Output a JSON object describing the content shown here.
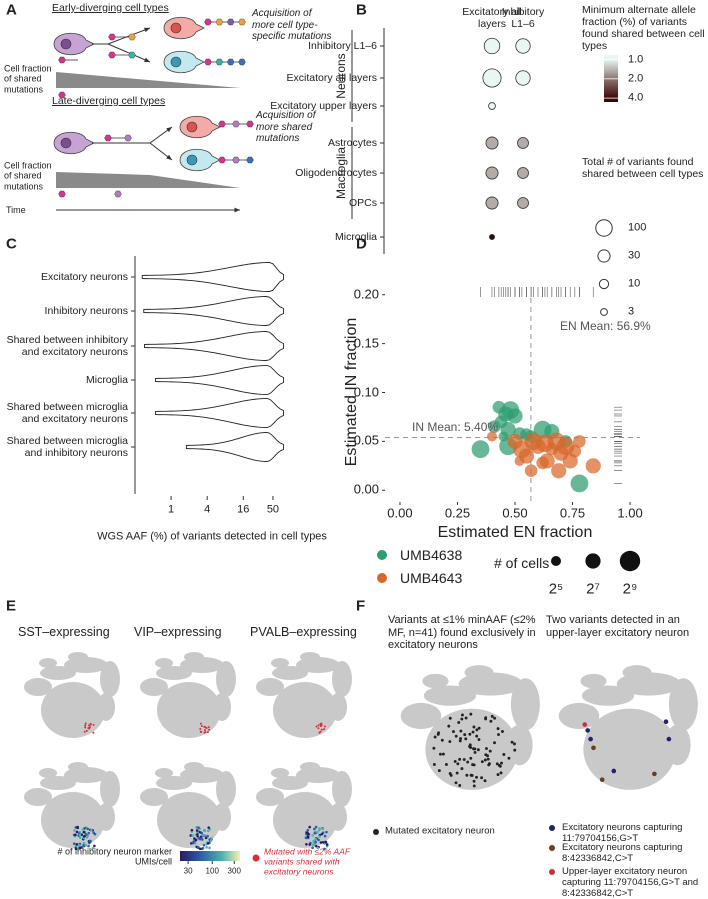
{
  "panels": {
    "a": {
      "label": "A",
      "early_title": "Early-diverging cell types",
      "early_note": "Acquisition of more cell type-specific mutations",
      "early_shared_label": "Cell fraction of shared mutations",
      "late_title": "Late-diverging cell types",
      "late_note": "Acquisition of more shared mutations",
      "late_shared_label": "Cell fraction of shared mutations",
      "time_label": "Time"
    },
    "b": {
      "label": "B"
    },
    "c": {
      "label": "C"
    },
    "d": {
      "label": "D"
    },
    "e": {
      "label": "E",
      "titles": [
        "SST–expressing",
        "VIP–expressing",
        "PVALB–expressing"
      ],
      "colorbar_title": "# of inhibitory neuron marker UMIs/cell",
      "colorbar_lim": [
        20,
        400
      ],
      "colorbar_ticks": [
        30,
        100,
        300
      ],
      "mutated_legend": "Mutated with ≤2% AAF variants shared with excitatory neurons",
      "mutated_color": "#d7303a"
    },
    "f": {
      "label": "F",
      "left_title": "Variants at ≤1% minAAF (≤2% MF, n=41) found exclusively in excitatory neurons",
      "right_title": "Two variants detected in an upper-layer excitatory neuron",
      "left_legend": "Mutated excitatory neuron",
      "left_color": "#222222",
      "right_legend": [
        {
          "label": "Excitatory neurons capturing 11:79704156,G>T",
          "color": "#23246e"
        },
        {
          "label": "Excitatory neurons capturing 8:42336842,C>T",
          "color": "#6b3d1f"
        },
        {
          "label": "Upper-layer excitatory neuron capturing 11:79704156,G>T and 8:42336842,C>T",
          "color": "#c8303c"
        }
      ]
    }
  },
  "chart_data": [
    {
      "type": "dot",
      "columns": [
        "Excitatory all layers",
        "Inhibitory L1–6"
      ],
      "rows": [
        "Inhibitory L1–6",
        "Excitatory all layers",
        "Excitatory upper layers",
        "Astrocytes",
        "Oligodendrocytes",
        "OPCs",
        "Microglia"
      ],
      "row_groups": [
        "Neurons",
        "Neurons",
        "Neurons",
        "Macroglia",
        "Macroglia",
        "Macroglia",
        null
      ],
      "sizes": [
        [
          80,
          60
        ],
        [
          150,
          60
        ],
        [
          3,
          null
        ],
        [
          30,
          20
        ],
        [
          30,
          20
        ],
        [
          30,
          20
        ],
        [
          1,
          null
        ]
      ],
      "aaf": [
        [
          1.0,
          1.0
        ],
        [
          1.0,
          1.0
        ],
        [
          1.0,
          null
        ],
        [
          1.5,
          1.5
        ],
        [
          1.5,
          1.5
        ],
        [
          1.5,
          1.5
        ],
        [
          4.0,
          null
        ]
      ],
      "color_title": "Minimum alternate allele fraction (%) of variants found shared between cell types",
      "color_lim": [
        0.85,
        4.6
      ],
      "color_ticks": [
        {
          "value": 1,
          "label": "1.0"
        },
        {
          "value": 2,
          "label": "2.0"
        },
        {
          "value": 4,
          "label": "4.0"
        }
      ],
      "size_title": "Total # of variants found shared between cell types",
      "size_ticks": [
        100,
        30,
        10,
        3
      ]
    },
    {
      "type": "violin",
      "categories": [
        "Excitatory neurons",
        "Inhibitory neurons",
        "Shared between inhibitory and excitatory neurons",
        "Microglia",
        "Shared between microglia and excitatory neurons",
        "Shared between microglia and inhibitory neurons"
      ],
      "min": [
        0.33,
        0.35,
        0.36,
        0.55,
        0.55,
        1.8
      ],
      "max": [
        75,
        75,
        75,
        75,
        75,
        75
      ],
      "mode": [
        45,
        40,
        40,
        40,
        40,
        40
      ],
      "xlim": [
        0.25,
        100
      ],
      "xticks": [
        1,
        4,
        16,
        50
      ],
      "log_x": true,
      "xlabel": "WGS AAF (%) of variants detected in cell types"
    },
    {
      "type": "scatter",
      "xlabel": "Estimated EN fraction",
      "ylabel": "Estimated IN fraction",
      "xlim": [
        -0.065,
        1.065
      ],
      "ylim": [
        -0.012,
        0.212
      ],
      "xticks": [
        {
          "value": 0,
          "label": "0.00"
        },
        0.25,
        {
          "value": 0.5,
          "label": "0.50"
        },
        0.75,
        {
          "value": 1,
          "label": "1.00"
        }
      ],
      "yticks": [
        {
          "value": 0,
          "label": "0.00"
        },
        0.05,
        {
          "value": 0.1,
          "label": "0.10"
        },
        0.15,
        {
          "value": 0.2,
          "label": "0.20"
        }
      ],
      "x_mean": 0.569,
      "y_mean": 0.054,
      "x_mean_label": "EN Mean: 56.9%",
      "y_mean_label": "IN Mean: 5.40%",
      "series": [
        {
          "name": "UMB4638",
          "color": "#2e9d70",
          "x": [
            0.43,
            0.46,
            0.48,
            0.5,
            0.44,
            0.41,
            0.47,
            0.52,
            0.55,
            0.62,
            0.66,
            0.35,
            0.47,
            0.57,
            0.78,
            0.72,
            0.45
          ],
          "y": [
            0.085,
            0.078,
            0.082,
            0.076,
            0.07,
            0.065,
            0.062,
            0.058,
            0.057,
            0.062,
            0.06,
            0.042,
            0.045,
            0.055,
            0.007,
            0.05,
            0.055
          ],
          "sizes": [
            64,
            128,
            256,
            128,
            64,
            64,
            128,
            64,
            64,
            256,
            128,
            256,
            256,
            64,
            256,
            64,
            32
          ]
        },
        {
          "name": "UMB4643",
          "color": "#d8672a",
          "x": [
            0.4,
            0.5,
            0.53,
            0.55,
            0.58,
            0.6,
            0.63,
            0.64,
            0.66,
            0.68,
            0.7,
            0.72,
            0.74,
            0.76,
            0.62,
            0.84,
            0.57,
            0.69,
            0.52,
            0.78
          ],
          "y": [
            0.055,
            0.05,
            0.042,
            0.035,
            0.05,
            0.045,
            0.048,
            0.03,
            0.042,
            0.05,
            0.038,
            0.045,
            0.03,
            0.04,
            0.028,
            0.025,
            0.02,
            0.02,
            0.03,
            0.05
          ],
          "sizes": [
            32,
            128,
            256,
            128,
            256,
            128,
            256,
            128,
            64,
            256,
            128,
            256,
            128,
            64,
            64,
            128,
            64,
            128,
            32,
            64
          ]
        }
      ],
      "size_title": "# of cells",
      "size_ticks": [
        {
          "value": 32,
          "label": "2⁵"
        },
        {
          "value": 128,
          "label": "2⁷"
        },
        {
          "value": 512,
          "label": "2⁹"
        }
      ]
    }
  ]
}
